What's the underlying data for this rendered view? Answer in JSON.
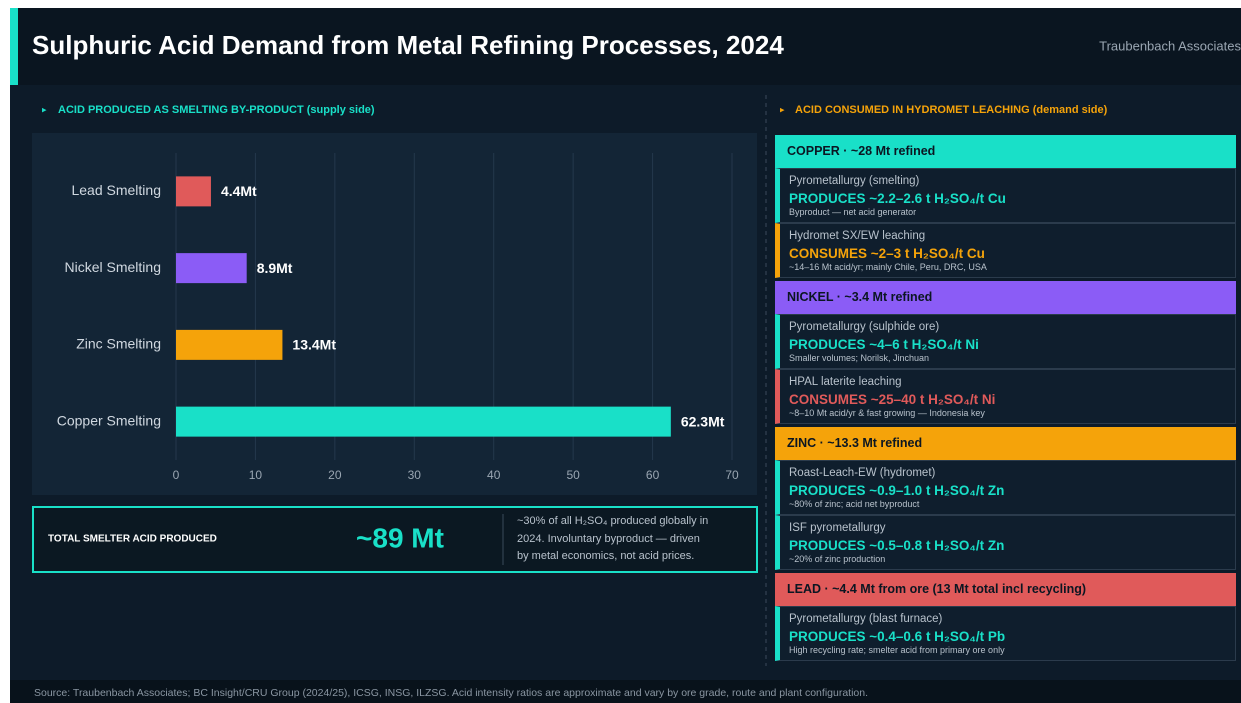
{
  "title": "Sulphuric Acid Demand from Metal Refining Processes, 2024",
  "brand": "Traubenbach Associates",
  "chart_data": {
    "type": "bar",
    "horizontal": true,
    "subtitle": "ACID PRODUCED AS SMELTING BY-PRODUCT (supply side)",
    "categories": [
      "Lead Smelting",
      "Nickel Smelting",
      "Zinc Smelting",
      "Copper Smelting"
    ],
    "values": [
      4.4,
      8.9,
      13.4,
      62.3
    ],
    "value_labels": [
      "4.4Mt",
      "8.9Mt",
      "13.4Mt",
      "62.3Mt"
    ],
    "colors": [
      "#e05a5a",
      "#8b5cf6",
      "#f5a30a",
      "#19e0c8"
    ],
    "xlim": [
      0,
      70
    ],
    "xticks": [
      0,
      10,
      20,
      30,
      40,
      50,
      60,
      70
    ],
    "grid": true
  },
  "summary": {
    "label": "TOTAL SMELTER ACID PRODUCED",
    "value": "~89 Mt",
    "note": [
      "~30% of all H₂SO₄ produced globally in",
      "2024. Involuntary byproduct — driven",
      "by metal economics, not acid prices."
    ]
  },
  "panel": {
    "title": "ACID CONSUMED IN HYDROMET LEACHING (demand side)",
    "groups": [
      {
        "header": "COPPER · ~28 Mt refined",
        "color": "#19e0c8",
        "items": [
          {
            "label": "Pyrometallurgy (smelting)",
            "headline": "PRODUCES ~2.2–2.6 t H₂SO₄/t Cu",
            "note": "Byproduct — net acid generator",
            "color": "#19e0c8"
          },
          {
            "label": "Hydromet SX/EW leaching",
            "headline": "CONSUMES ~2–3 t H₂SO₄/t Cu",
            "note": "~14–16 Mt acid/yr; mainly Chile, Peru, DRC, USA",
            "color": "#f5a30a"
          }
        ]
      },
      {
        "header": "NICKEL · ~3.4 Mt refined",
        "color": "#8b5cf6",
        "items": [
          {
            "label": "Pyrometallurgy (sulphide ore)",
            "headline": "PRODUCES ~4–6 t H₂SO₄/t Ni",
            "note": "Smaller volumes; Norilsk, Jinchuan",
            "color": "#19e0c8"
          },
          {
            "label": "HPAL laterite leaching",
            "headline": "CONSUMES ~25–40 t H₂SO₄/t Ni",
            "note": "~8–10 Mt acid/yr & fast growing — Indonesia key",
            "color": "#e05a5a"
          }
        ]
      },
      {
        "header": "ZINC · ~13.3 Mt refined",
        "color": "#f5a30a",
        "items": [
          {
            "label": "Roast-Leach-EW (hydromet)",
            "headline": "PRODUCES ~0.9–1.0 t H₂SO₄/t Zn",
            "note": "~80% of zinc; acid net byproduct",
            "color": "#19e0c8"
          },
          {
            "label": "ISF pyrometallurgy",
            "headline": "PRODUCES ~0.5–0.8 t H₂SO₄/t Zn",
            "note": "~20% of zinc production",
            "color": "#19e0c8"
          }
        ]
      },
      {
        "header": "LEAD · ~4.4 Mt from ore (13 Mt total incl recycling)",
        "color": "#e05a5a",
        "items": [
          {
            "label": "Pyrometallurgy (blast furnace)",
            "headline": "PRODUCES ~0.4–0.6 t H₂SO₄/t Pb",
            "note": "High recycling rate; smelter acid from primary ore only",
            "color": "#19e0c8"
          }
        ]
      }
    ]
  },
  "source": "Source: Traubenbach Associates; BC Insight/CRU Group (2024/25), ICSG, INSG, ILZSG. Acid intensity ratios are approximate and   vary by ore grade, route and plant configuration."
}
